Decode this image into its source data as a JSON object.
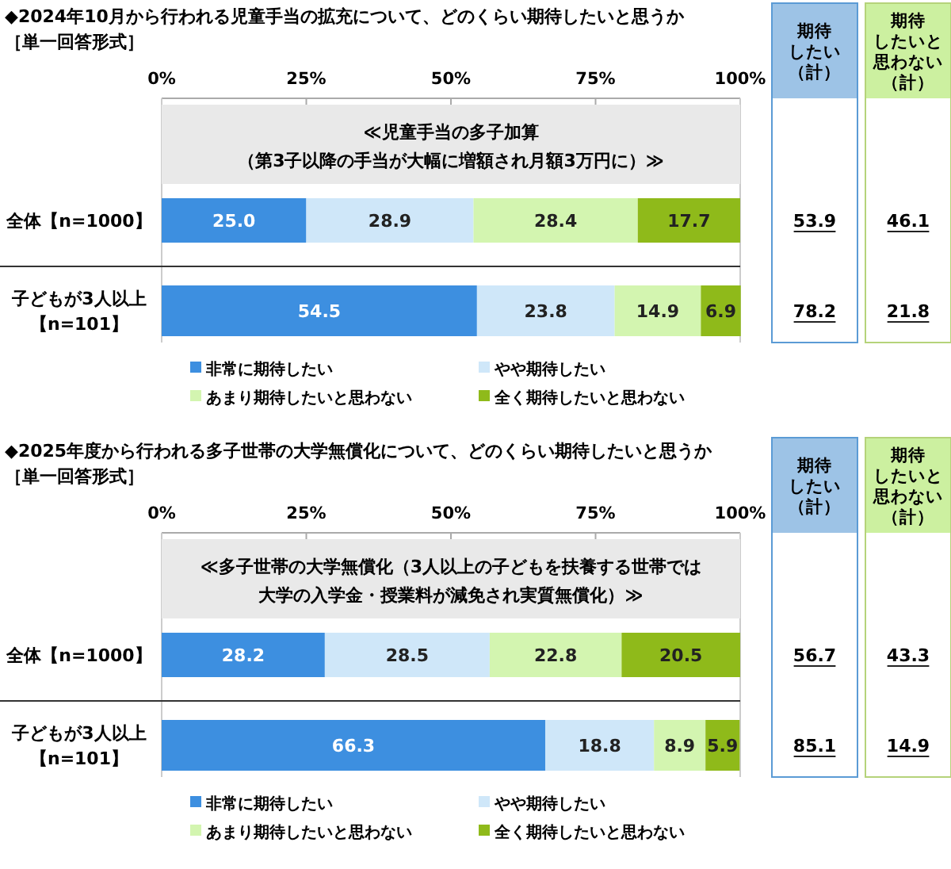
{
  "chart_data": [
    {
      "type": "bar",
      "orientation": "horizontal",
      "stacked": true,
      "title": "◆2024年10月から行われる児童手当の拡充について、どのくらい期待したいと思うか",
      "subtitle": "［単一回答形式］",
      "categories": [
        "全体【n=1000】",
        "子どもが3人以上【n=101】"
      ],
      "xlim": [
        0,
        100
      ],
      "xticks": [
        {
          "value": 0,
          "label": "0%"
        },
        {
          "value": 25,
          "label": "25%"
        },
        {
          "value": 50,
          "label": "50%"
        },
        {
          "value": 75,
          "label": "75%"
        },
        {
          "value": 100,
          "label": "100%"
        }
      ],
      "legend": "bottom",
      "bands": [
        {
          "axis": "x",
          "from": 0,
          "to": 100,
          "label": "≪児童手当の多子加算（第3子以降の手当が大幅に増額され月額3万円に）≫",
          "color": "#e9e9e9"
        }
      ],
      "annotations": [
        "期待したい（計）",
        "期待したいと思わない（計）",
        "53.9",
        "46.1",
        "78.2",
        "21.8"
      ],
      "series": [
        {
          "name": "非常に期待したい",
          "color": "#3d8fe0",
          "values": [
            25.0,
            54.5
          ],
          "value_labels": [
            "25.0",
            "54.5"
          ]
        },
        {
          "name": "やや期待したい",
          "color": "#cfe7f9",
          "values": [
            28.9,
            23.8
          ],
          "value_labels": [
            "28.9",
            "23.8"
          ]
        },
        {
          "name": "あまり期待したいと思わない",
          "color": "#d3f5b0",
          "values": [
            28.4,
            14.9
          ],
          "value_labels": [
            "28.4",
            "14.9"
          ]
        },
        {
          "name": "全く期待したいと思わない",
          "color": "#8fba1a",
          "values": [
            17.7,
            6.9
          ],
          "value_labels": [
            "17.7",
            "6.9"
          ]
        }
      ]
    },
    {
      "type": "bar",
      "orientation": "horizontal",
      "stacked": true,
      "title": "◆2025年度から行われる多子世帯の大学無償化について、どのくらい期待したいと思うか",
      "subtitle": "［単一回答形式］",
      "categories": [
        "全体【n=1000】",
        "子どもが3人以上【n=101】"
      ],
      "xlim": [
        0,
        100
      ],
      "xticks": [
        {
          "value": 0,
          "label": "0%"
        },
        {
          "value": 25,
          "label": "25%"
        },
        {
          "value": 50,
          "label": "50%"
        },
        {
          "value": 75,
          "label": "75%"
        },
        {
          "value": 100,
          "label": "100%"
        }
      ],
      "legend": "bottom",
      "bands": [
        {
          "axis": "x",
          "from": 0,
          "to": 100,
          "label": "≪多子世帯の大学無償化（3人以上の子どもを扶養する世帯では大学の入学金・授業料が減免され実質無償化）≫",
          "color": "#e9e9e9"
        }
      ],
      "annotations": [
        "期待したい（計）",
        "期待したいと思わない（計）",
        "56.7",
        "43.3",
        "85.1",
        "14.9"
      ],
      "series": [
        {
          "name": "非常に期待したい",
          "color": "#3d8fe0",
          "values": [
            28.2,
            66.3
          ],
          "value_labels": [
            "28.2",
            "66.3"
          ]
        },
        {
          "name": "やや期待したい",
          "color": "#cfe7f9",
          "values": [
            28.5,
            18.8
          ],
          "value_labels": [
            "28.5",
            "18.8"
          ]
        },
        {
          "name": "あまり期待したいと思わない",
          "color": "#d3f5b0",
          "values": [
            22.8,
            8.9
          ],
          "value_labels": [
            "22.8",
            "8.9"
          ]
        },
        {
          "name": "全く期待したいと思わない",
          "color": "#8fba1a",
          "values": [
            20.5,
            5.9
          ],
          "value_labels": [
            "20.5",
            "5.9"
          ]
        }
      ]
    }
  ]
}
